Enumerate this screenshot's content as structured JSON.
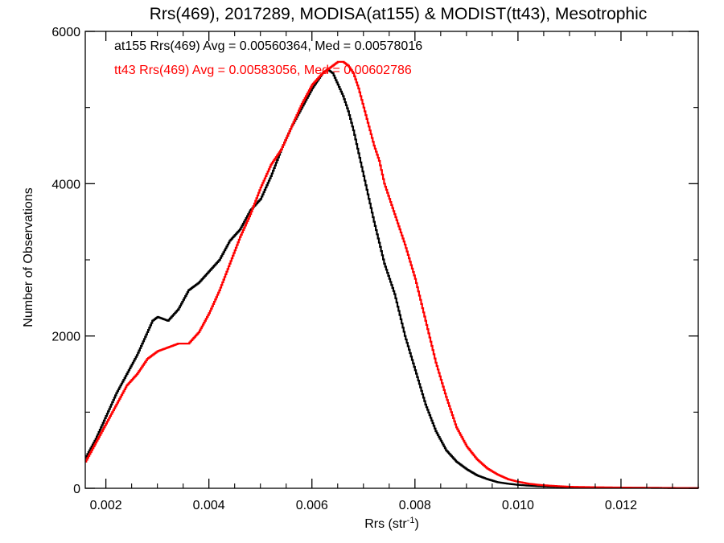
{
  "chart_data": {
    "type": "line",
    "title": "Rrs(469), 2017289, MODISA(at155) & MODIST(tt43), Mesotrophic",
    "xlabel": "Rrs (str",
    "xlabel_sup": "-1",
    "xlabel_end": ")",
    "ylabel": "Number of Observations",
    "xlim": [
      0.0016,
      0.0135
    ],
    "ylim": [
      0,
      6000
    ],
    "xticks": [
      0.002,
      0.004,
      0.006,
      0.008,
      0.01,
      0.012
    ],
    "xtick_labels": [
      "0.002",
      "0.004",
      "0.006",
      "0.008",
      "0.010",
      "0.012"
    ],
    "yticks": [
      0,
      2000,
      4000,
      6000
    ],
    "ytick_labels": [
      "0",
      "2000",
      "4000",
      "6000"
    ],
    "grid": false,
    "legend": [
      {
        "text": "at155 Rrs(469) Avg = 0.00560364, Med = 0.00578016",
        "color": "#000000"
      },
      {
        "text": "tt43 Rrs(469) Avg = 0.00583056, Med = 0.00602786",
        "color": "#ff0000"
      }
    ],
    "series": [
      {
        "name": "at155",
        "color": "#000000",
        "x": [
          0.0016,
          0.0018,
          0.002,
          0.0022,
          0.0024,
          0.0026,
          0.0028,
          0.0029,
          0.003,
          0.0032,
          0.0034,
          0.0036,
          0.0038,
          0.004,
          0.0042,
          0.0044,
          0.0046,
          0.0048,
          0.005,
          0.0052,
          0.0054,
          0.0056,
          0.0058,
          0.006,
          0.0061,
          0.0062,
          0.0063,
          0.0064,
          0.0065,
          0.0066,
          0.0067,
          0.0068,
          0.0069,
          0.007,
          0.0072,
          0.0074,
          0.0076,
          0.0078,
          0.008,
          0.0082,
          0.0084,
          0.0086,
          0.0088,
          0.009,
          0.0092,
          0.0094,
          0.0096,
          0.0098,
          0.01,
          0.0102,
          0.0104,
          0.0106,
          0.0108,
          0.011,
          0.0115,
          0.012,
          0.0125,
          0.013,
          0.0135
        ],
        "y": [
          400,
          650,
          950,
          1250,
          1500,
          1750,
          2050,
          2200,
          2250,
          2200,
          2350,
          2600,
          2700,
          2850,
          3000,
          3250,
          3400,
          3650,
          3800,
          4100,
          4450,
          4750,
          5000,
          5250,
          5350,
          5450,
          5500,
          5450,
          5300,
          5150,
          4950,
          4700,
          4400,
          4100,
          3500,
          2950,
          2550,
          2000,
          1550,
          1100,
          750,
          500,
          350,
          250,
          170,
          120,
          80,
          60,
          45,
          35,
          28,
          22,
          18,
          15,
          10,
          8,
          6,
          4,
          3
        ]
      },
      {
        "name": "tt43",
        "color": "#ff0000",
        "x": [
          0.0016,
          0.0018,
          0.002,
          0.0022,
          0.0024,
          0.0026,
          0.0028,
          0.003,
          0.0032,
          0.0034,
          0.0036,
          0.0038,
          0.004,
          0.0042,
          0.0044,
          0.0046,
          0.0048,
          0.005,
          0.0052,
          0.0054,
          0.0056,
          0.0058,
          0.006,
          0.0062,
          0.0064,
          0.0065,
          0.0066,
          0.0067,
          0.0068,
          0.0069,
          0.007,
          0.0071,
          0.0072,
          0.0073,
          0.0074,
          0.0076,
          0.0078,
          0.008,
          0.0082,
          0.0084,
          0.0086,
          0.0088,
          0.009,
          0.0092,
          0.0094,
          0.0096,
          0.0098,
          0.01,
          0.0102,
          0.0104,
          0.0106,
          0.0108,
          0.011,
          0.0115,
          0.012,
          0.0125,
          0.013,
          0.0135
        ],
        "y": [
          350,
          600,
          850,
          1100,
          1350,
          1500,
          1700,
          1800,
          1850,
          1900,
          1900,
          2050,
          2300,
          2600,
          2950,
          3300,
          3600,
          3950,
          4250,
          4450,
          4750,
          5050,
          5300,
          5450,
          5550,
          5600,
          5600,
          5550,
          5450,
          5250,
          5000,
          4750,
          4500,
          4300,
          4000,
          3600,
          3200,
          2750,
          2200,
          1650,
          1200,
          800,
          550,
          380,
          260,
          180,
          120,
          85,
          60,
          45,
          35,
          27,
          20,
          14,
          10,
          7,
          5,
          3
        ]
      }
    ]
  }
}
